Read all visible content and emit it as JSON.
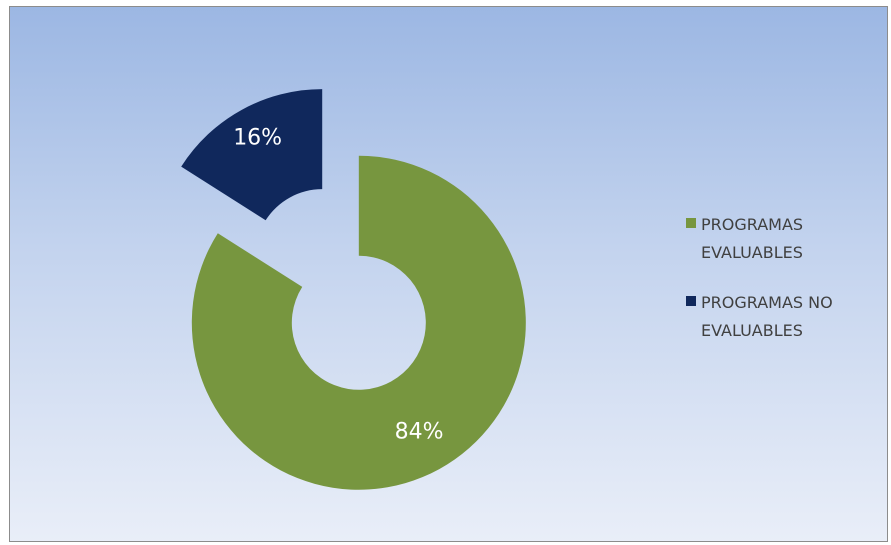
{
  "chart_data": {
    "type": "pie",
    "variant": "donut (exploded)",
    "title": "",
    "series": [
      {
        "categories": [
          "PROGRAMAS EVALUABLES",
          "PROGRAMAS NO EVALUABLES"
        ],
        "values": [
          84,
          16
        ],
        "labels": [
          "84%",
          "16%"
        ],
        "colors": [
          "#77963f",
          "#10285c"
        ]
      }
    ],
    "legend": {
      "position": "right",
      "items": [
        {
          "label": "PROGRAMAS EVALUABLES",
          "color": "#77963f"
        },
        {
          "label": "PROGRAMAS NO EVALUABLES",
          "color": "#10285c"
        }
      ]
    }
  }
}
